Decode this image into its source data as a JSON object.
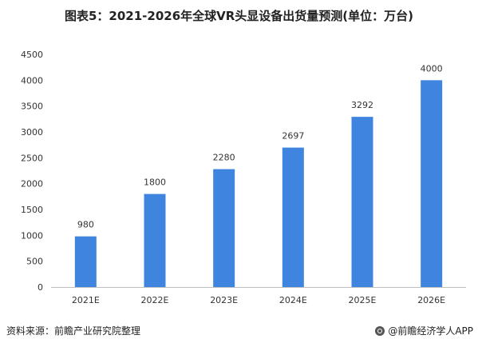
{
  "title": "图表5：2021-2026年全球VR头显设备出货量预测(单位：万台)",
  "source": "资料来源：前瞻产业研究院整理",
  "credit": "@前瞻经济学人APP",
  "colors": {
    "bar": "#3f85e0",
    "axis": "#bfbfbf"
  },
  "chart_data": {
    "type": "bar",
    "categories": [
      "2021E",
      "2022E",
      "2023E",
      "2024E",
      "2025E",
      "2026E"
    ],
    "values": [
      980,
      1800,
      2280,
      2697,
      3292,
      4000
    ],
    "ylim": [
      0,
      4500
    ],
    "yticks": [
      0,
      500,
      1000,
      1500,
      2000,
      2500,
      3000,
      3500,
      4000,
      4500
    ],
    "grid": false,
    "xlabel": "",
    "ylabel": ""
  }
}
